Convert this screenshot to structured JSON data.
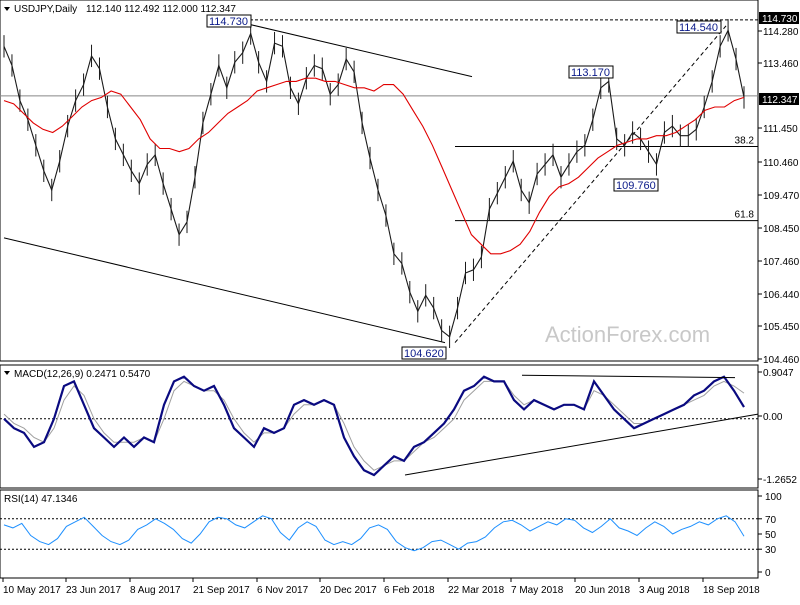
{
  "chart_data": {
    "type": "line",
    "title": "USDJPY,Daily",
    "ohlc_header": "112.140 112.492 112.000 112.347",
    "watermark": "ActionForex.com",
    "x_labels": [
      "10 May 2017",
      "23 Jun 2017",
      "8 Aug 2017",
      "21 Sep 2017",
      "6 Nov 2017",
      "20 Dec 2017",
      "6 Feb 2018",
      "22 Mar 2018",
      "7 May 2018",
      "20 Jun 2018",
      "3 Aug 2018",
      "18 Sep 2018"
    ],
    "price_panel": {
      "y_ticks": [
        "114.730",
        "114.280",
        "113.460",
        "112.347",
        "111.450",
        "110.460",
        "109.470",
        "108.450",
        "107.460",
        "106.440",
        "105.450",
        "104.460"
      ],
      "ylim": [
        104.2,
        115.1
      ],
      "current_price": "112.347",
      "top_level": "114.730",
      "series": [
        {
          "name": "price",
          "values": [
            113.9,
            113.3,
            112.2,
            111.6,
            110.8,
            110.0,
            109.4,
            110.3,
            111.4,
            112.2,
            112.7,
            113.6,
            113.2,
            112.0,
            111.0,
            110.5,
            110.0,
            109.6,
            110.2,
            110.5,
            109.6,
            108.8,
            108.0,
            108.4,
            109.8,
            111.5,
            112.4,
            113.3,
            112.6,
            113.4,
            113.7,
            114.3,
            113.4,
            112.8,
            114.0,
            113.9,
            112.6,
            112.1,
            112.9,
            113.3,
            113.2,
            112.4,
            112.7,
            113.5,
            113.1,
            111.5,
            110.4,
            109.4,
            108.6,
            107.4,
            107.1,
            106.2,
            105.6,
            106.1,
            105.7,
            105.0,
            104.8,
            105.7,
            106.8,
            106.9,
            107.3,
            108.8,
            109.3,
            109.8,
            110.3,
            109.4,
            109.0,
            109.9,
            110.2,
            110.5,
            109.8,
            110.2,
            110.6,
            110.8,
            111.6,
            112.6,
            112.8,
            111.0,
            110.8,
            111.2,
            111.0,
            110.6,
            110.2,
            111.2,
            111.4,
            111.1,
            111.1,
            111.3,
            112.0,
            112.8,
            113.9,
            114.4,
            113.5,
            112.3
          ]
        },
        {
          "name": "ma",
          "values": [
            112.2,
            112.1,
            111.8,
            111.5,
            111.3,
            111.2,
            111.4,
            111.7,
            112.0,
            112.2,
            112.3,
            112.5,
            112.4,
            112.0,
            111.6,
            111.0,
            110.7,
            110.7,
            110.6,
            110.7,
            111.0,
            111.2,
            111.5,
            111.8,
            112.0,
            112.2,
            112.5,
            112.6,
            112.7,
            112.8,
            112.8,
            112.9,
            112.9,
            112.8,
            112.8,
            112.7,
            112.6,
            112.6,
            112.5,
            112.7,
            112.7,
            112.4,
            111.9,
            111.4,
            110.8,
            110.1,
            109.4,
            108.7,
            108.0,
            107.7,
            107.4,
            107.4,
            107.5,
            107.7,
            108.1,
            108.7,
            109.2,
            109.5,
            109.6,
            109.8,
            110.1,
            110.4,
            110.6,
            110.8,
            110.9,
            111.0,
            111.0,
            111.1,
            111.1,
            111.2,
            111.4,
            111.6,
            111.9,
            112.0,
            112.0,
            112.2,
            112.3
          ]
        }
      ],
      "callouts": [
        {
          "label": "114.730",
          "x_index": 26,
          "price": 114.73
        },
        {
          "label": "113.170",
          "x_index": 61,
          "price": 113.17
        },
        {
          "label": "109.760",
          "x_index": 64,
          "price": 109.76
        },
        {
          "label": "104.620",
          "x_index": 40,
          "price": 104.62
        },
        {
          "label": "114.540",
          "x_index": 73,
          "price": 114.54
        }
      ],
      "fib_levels": [
        {
          "label": "38.2",
          "price": 110.76
        },
        {
          "label": "61.8",
          "price": 108.44
        }
      ]
    },
    "macd_panel": {
      "title": "MACD(12,26,9) 0.2471 0.5470",
      "y_ticks": [
        "0.9047",
        "0.00",
        "-1.2652"
      ],
      "ylim": [
        -1.35,
        1.0
      ],
      "series": [
        {
          "name": "macd",
          "values": [
            0.0,
            -0.2,
            -0.3,
            -0.6,
            -0.5,
            0.0,
            0.7,
            0.8,
            0.3,
            -0.2,
            -0.4,
            -0.6,
            -0.4,
            -0.6,
            -0.4,
            -0.5,
            0.3,
            0.8,
            0.9,
            0.7,
            0.6,
            0.7,
            0.3,
            -0.2,
            -0.4,
            -0.6,
            -0.2,
            -0.3,
            -0.2,
            0.3,
            0.4,
            0.3,
            0.4,
            0.3,
            -0.4,
            -0.8,
            -1.1,
            -1.2,
            -1.0,
            -0.8,
            -0.9,
            -0.6,
            -0.5,
            -0.3,
            -0.1,
            0.2,
            0.6,
            0.7,
            0.9,
            0.8,
            0.8,
            0.4,
            0.2,
            0.4,
            0.3,
            0.2,
            0.3,
            0.3,
            0.2,
            0.8,
            0.5,
            0.2,
            0.0,
            -0.2,
            -0.1,
            0.0,
            0.1,
            0.2,
            0.3,
            0.5,
            0.6,
            0.8,
            0.9,
            0.6,
            0.25
          ]
        },
        {
          "name": "signal",
          "values": [
            0.1,
            -0.1,
            -0.2,
            -0.4,
            -0.5,
            -0.2,
            0.4,
            0.7,
            0.5,
            0.0,
            -0.3,
            -0.5,
            -0.5,
            -0.5,
            -0.4,
            -0.5,
            0.0,
            0.6,
            0.8,
            0.7,
            0.6,
            0.6,
            0.4,
            0.0,
            -0.3,
            -0.5,
            -0.3,
            -0.3,
            -0.2,
            0.1,
            0.3,
            0.3,
            0.4,
            0.3,
            -0.1,
            -0.6,
            -0.9,
            -1.1,
            -1.0,
            -0.9,
            -0.9,
            -0.7,
            -0.5,
            -0.4,
            -0.2,
            0.0,
            0.4,
            0.6,
            0.8,
            0.8,
            0.8,
            0.5,
            0.3,
            0.4,
            0.3,
            0.2,
            0.3,
            0.3,
            0.2,
            0.6,
            0.5,
            0.3,
            0.1,
            -0.1,
            -0.1,
            0.0,
            0.1,
            0.2,
            0.3,
            0.4,
            0.5,
            0.7,
            0.8,
            0.7,
            0.55
          ]
        }
      ]
    },
    "rsi_panel": {
      "title": "RSI(14) 47.1346",
      "y_ticks": [
        "100",
        "70",
        "50",
        "30",
        "0"
      ],
      "ylim": [
        0,
        100
      ],
      "levels": [
        70,
        30
      ],
      "series": [
        {
          "name": "rsi",
          "values": [
            62,
            58,
            64,
            48,
            40,
            36,
            44,
            60,
            66,
            72,
            60,
            48,
            40,
            36,
            42,
            56,
            62,
            70,
            64,
            56,
            44,
            38,
            50,
            66,
            72,
            70,
            62,
            58,
            66,
            74,
            70,
            52,
            42,
            58,
            66,
            60,
            42,
            36,
            40,
            36,
            44,
            58,
            62,
            56,
            40,
            32,
            28,
            32,
            40,
            42,
            36,
            30,
            38,
            40,
            46,
            58,
            66,
            68,
            62,
            54,
            60,
            66,
            62,
            70,
            68,
            58,
            52,
            60,
            70,
            58,
            54,
            48,
            58,
            66,
            60,
            50,
            56,
            60,
            66,
            62,
            70,
            74,
            66,
            47
          ]
        }
      ]
    }
  }
}
